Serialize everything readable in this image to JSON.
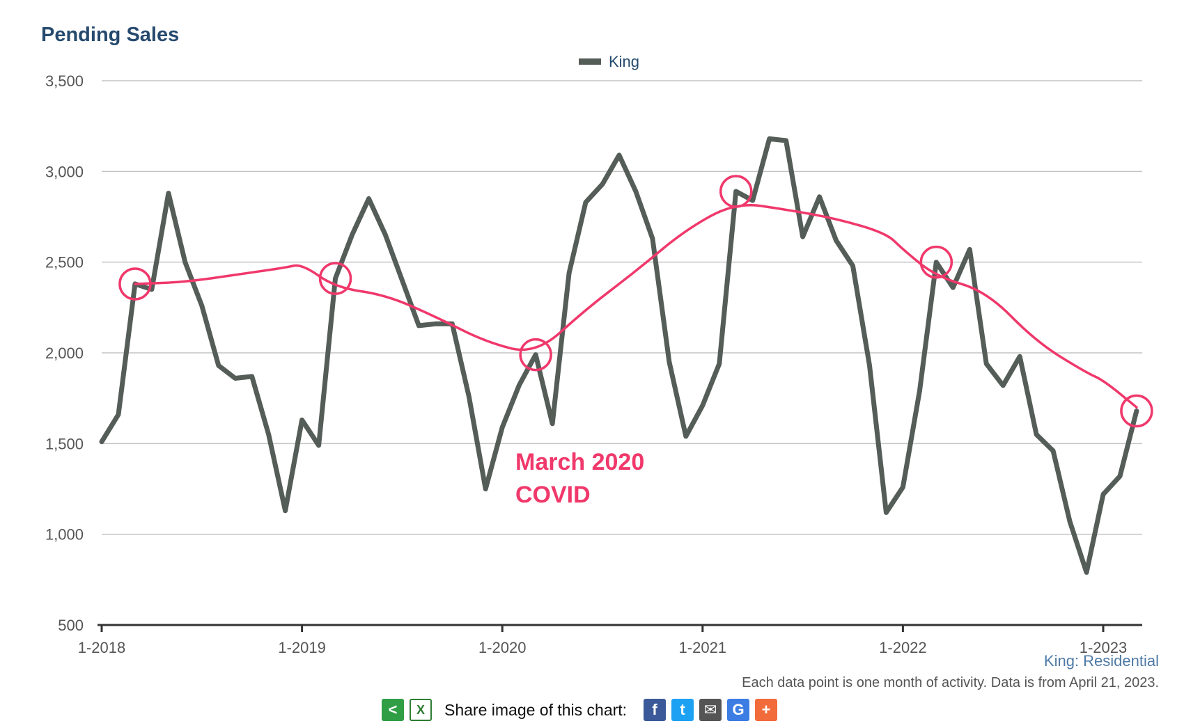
{
  "chart_data": {
    "type": "line",
    "title": "Pending Sales",
    "legend": {
      "entries": [
        "King"
      ],
      "placement": "top-center"
    },
    "ylim": [
      500,
      3500
    ],
    "yticks": [
      "3,500",
      "3,000",
      "2,500",
      "2,000",
      "1,500",
      "1,000",
      "500"
    ],
    "xticks": [
      "1-2018",
      "1-2019",
      "1-2020",
      "1-2021",
      "1-2022",
      "1-2023"
    ],
    "grid": true,
    "series": [
      {
        "name": "King",
        "color": "#555d59",
        "x": [
          "2018-01",
          "2018-02",
          "2018-03",
          "2018-04",
          "2018-05",
          "2018-06",
          "2018-07",
          "2018-08",
          "2018-09",
          "2018-10",
          "2018-11",
          "2018-12",
          "2019-01",
          "2019-02",
          "2019-03",
          "2019-04",
          "2019-05",
          "2019-06",
          "2019-07",
          "2019-08",
          "2019-09",
          "2019-10",
          "2019-11",
          "2019-12",
          "2020-01",
          "2020-02",
          "2020-03",
          "2020-04",
          "2020-05",
          "2020-06",
          "2020-07",
          "2020-08",
          "2020-09",
          "2020-10",
          "2020-11",
          "2020-12",
          "2021-01",
          "2021-02",
          "2021-03",
          "2021-04",
          "2021-05",
          "2021-06",
          "2021-07",
          "2021-08",
          "2021-09",
          "2021-10",
          "2021-11",
          "2021-12",
          "2022-01",
          "2022-02",
          "2022-03",
          "2022-04",
          "2022-05",
          "2022-06",
          "2022-07",
          "2022-08",
          "2022-09",
          "2022-10",
          "2022-11",
          "2022-12",
          "2023-01",
          "2023-02",
          "2023-03"
        ],
        "values": [
          1510,
          1660,
          2380,
          2350,
          2880,
          2500,
          2260,
          1930,
          1860,
          1870,
          1550,
          1130,
          1630,
          1490,
          2410,
          2650,
          2850,
          2650,
          2400,
          2150,
          2160,
          2160,
          1760,
          1250,
          1590,
          1820,
          1990,
          1610,
          2440,
          2830,
          2930,
          3090,
          2890,
          2630,
          1950,
          1540,
          1710,
          1940,
          2890,
          2840,
          3180,
          3170,
          2640,
          2860,
          2620,
          2480,
          1930,
          1120,
          1260,
          1790,
          2500,
          2360,
          2570,
          1940,
          1820,
          1980,
          1550,
          1460,
          1070,
          790,
          1220,
          1320,
          1680
        ]
      }
    ],
    "annotations": {
      "trend": {
        "x": [
          "2018-03",
          "2018-06",
          "2018-09",
          "2018-12",
          "2019-01",
          "2019-03",
          "2019-06",
          "2019-09",
          "2019-12",
          "2020-03",
          "2020-06",
          "2020-09",
          "2020-12",
          "2021-03",
          "2021-06",
          "2021-09",
          "2021-12",
          "2022-01",
          "2022-03",
          "2022-06",
          "2022-09",
          "2022-12",
          "2023-01",
          "2023-03"
        ],
        "values": [
          2380,
          2390,
          2430,
          2470,
          2490,
          2360,
          2320,
          2200,
          2060,
          1990,
          2240,
          2450,
          2680,
          2830,
          2790,
          2740,
          2660,
          2570,
          2420,
          2340,
          2060,
          1890,
          1850,
          1700
        ]
      },
      "circled_points": [
        "2018-03",
        "2019-03",
        "2020-03",
        "2021-03",
        "2022-03",
        "2023-03"
      ],
      "text_lines": [
        "March 2020",
        "COVID"
      ],
      "color": "#f0386b"
    }
  },
  "footer": {
    "subtitle": "King: Residential",
    "note": "Each data point is one month of activity. Data is from April 21, 2023."
  },
  "share": {
    "label": "Share image of this chart:",
    "icons": [
      "share-icon",
      "excel-icon",
      "facebook-icon",
      "twitter-icon",
      "email-icon",
      "google-icon",
      "plus-icon"
    ]
  }
}
